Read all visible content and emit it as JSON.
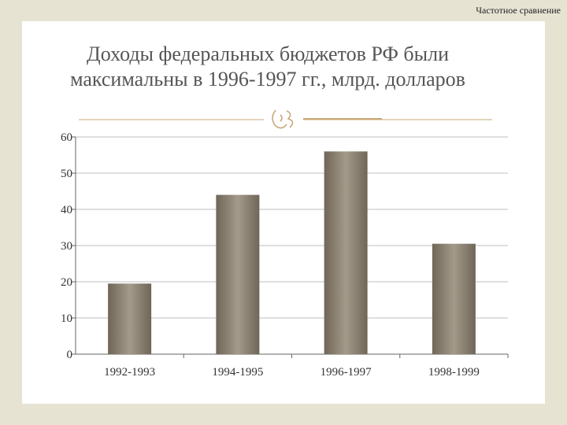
{
  "header": {
    "corner_label": "Частотное сравнение"
  },
  "slide": {
    "title_line1": "Доходы федеральных бюджетов РФ были",
    "title_line2": "максимальны в 1996-1997 гг., млрд. долларов"
  },
  "colors": {
    "background": "#e6e3d3",
    "accent_line": "#c8a878",
    "bar_dark": "#6f6658",
    "bar_light": "#a39a8a",
    "gridline": "#bfbfbf"
  },
  "icons": {
    "divider_ornament": "scroll-ornament-icon"
  },
  "chart_data": {
    "type": "bar",
    "categories": [
      "1992-1993",
      "1994-1995",
      "1996-1997",
      "1998-1999"
    ],
    "values": [
      19.5,
      44,
      56,
      30.5
    ],
    "ylim": [
      0,
      60
    ],
    "yticks": [
      0,
      10,
      20,
      30,
      40,
      50,
      60
    ],
    "grid": true,
    "legend": "none"
  }
}
